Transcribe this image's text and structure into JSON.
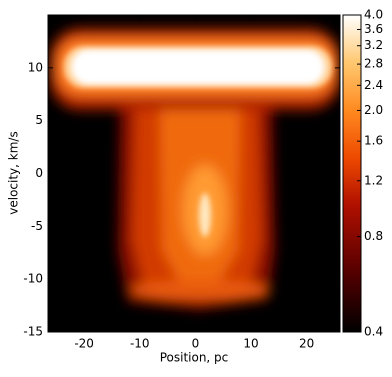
{
  "chart_data": {
    "type": "heatmap",
    "x_label": "Position, pc",
    "y_label": "velocity, km/s",
    "xlim": [
      -26.5,
      26
    ],
    "ylim": [
      -15,
      15
    ],
    "xticks": [
      -20,
      -10,
      0,
      10,
      20
    ],
    "yticks": [
      -15,
      -10,
      -5,
      0,
      5,
      10
    ],
    "colorbar": {
      "scale": "log",
      "lim": [
        0.4,
        4
      ],
      "ticks": [
        0.4,
        0.8,
        1.2,
        1.6,
        {
          "value": 2,
          "label": "2.0"
        },
        2.4,
        2.8,
        3.2,
        3.6,
        {
          "value": 4,
          "label": "4.0"
        }
      ]
    }
  }
}
